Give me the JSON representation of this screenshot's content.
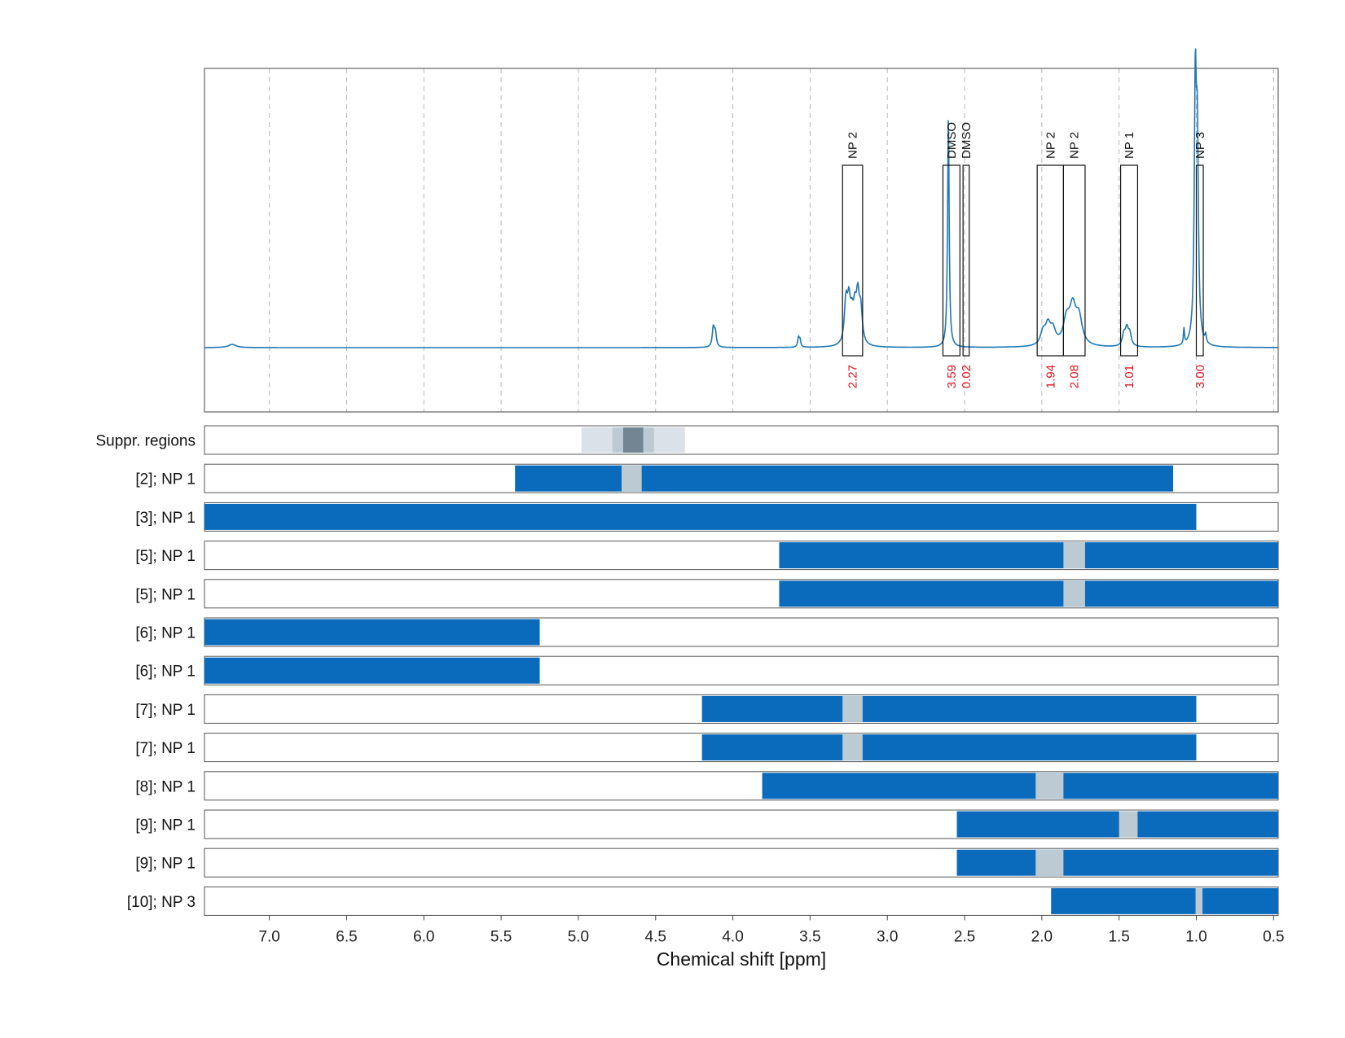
{
  "chart_data": {
    "type": "line",
    "xlabel": "Chemical shift [ppm]",
    "xlim": [
      7.42,
      0.47
    ],
    "x_ticks": [
      "7.0",
      "6.5",
      "6.0",
      "5.5",
      "5.0",
      "4.5",
      "4.0",
      "3.5",
      "3.0",
      "2.5",
      "2.0",
      "1.5",
      "1.0",
      "0.5"
    ],
    "grid": "vertical dashed",
    "colors": {
      "spectrum": "#1f77b4",
      "bar": "#0a6bbd",
      "gap": "#bccad3",
      "integral": "#e0141e",
      "box": "#111111"
    },
    "spectrum": {
      "baseline": 0.0,
      "peaks": [
        {
          "ppm": 7.24,
          "height": 0.012,
          "width": 0.03
        },
        {
          "ppm": 4.12,
          "height": 0.07,
          "width": 0.008,
          "multiplet": 2
        },
        {
          "ppm": 3.57,
          "height": 0.035,
          "width": 0.006,
          "multiplet": 2
        },
        {
          "ppm": 3.22,
          "height": 0.16,
          "width": 0.012,
          "multiplet": 6
        },
        {
          "ppm": 2.605,
          "height": 0.86,
          "width": 0.006
        },
        {
          "ppm": 1.96,
          "height": 0.07,
          "width": 0.02,
          "multiplet": 3
        },
        {
          "ppm": 1.8,
          "height": 0.13,
          "width": 0.025,
          "multiplet": 3
        },
        {
          "ppm": 1.45,
          "height": 0.06,
          "width": 0.012,
          "multiplet": 3
        },
        {
          "ppm": 1.08,
          "height": 0.06,
          "width": 0.004
        },
        {
          "ppm": 1.0,
          "height": 0.92,
          "width": 0.008,
          "multiplet": 2
        },
        {
          "ppm": 0.94,
          "height": 0.03,
          "width": 0.005
        }
      ]
    },
    "regions": [
      {
        "label": "NP 2",
        "start": 3.29,
        "end": 3.16,
        "integral": "2.27"
      },
      {
        "label": "DMSO",
        "start": 2.64,
        "end": 2.53,
        "integral": "3.59"
      },
      {
        "label": "DMSO",
        "start": 2.51,
        "end": 2.47,
        "integral": "0.02"
      },
      {
        "label": "NP 2",
        "start": 2.03,
        "end": 1.86,
        "integral": "1.94"
      },
      {
        "label": "NP 2",
        "start": 1.86,
        "end": 1.72,
        "integral": "2.08"
      },
      {
        "label": "NP 1",
        "start": 1.49,
        "end": 1.38,
        "integral": "1.01"
      },
      {
        "label": "NP 3",
        "start": 1.0,
        "end": 0.955,
        "integral": "3.00"
      }
    ],
    "suppression_rows": {
      "label": "Suppr. regions",
      "bands": [
        {
          "start": 4.98,
          "end": 4.31,
          "shade": "#dbe1e8"
        },
        {
          "start": 4.78,
          "end": 4.51,
          "shade": "#bccad3"
        },
        {
          "start": 4.71,
          "end": 4.58,
          "shade": "#738593"
        }
      ]
    },
    "rows": [
      {
        "label": "[2]; NP 1",
        "start": 5.41,
        "end": 1.15,
        "gaps": [
          [
            4.72,
            4.59
          ]
        ]
      },
      {
        "label": "[3]; NP 1",
        "start": 7.42,
        "end": 1.0,
        "gaps": []
      },
      {
        "label": "[5]; NP 1",
        "start": 3.7,
        "end": 0.47,
        "gaps": [
          [
            1.86,
            1.72
          ]
        ]
      },
      {
        "label": "[5]; NP 1",
        "start": 3.7,
        "end": 0.47,
        "gaps": [
          [
            1.86,
            1.72
          ]
        ]
      },
      {
        "label": "[6]; NP 1",
        "start": 7.42,
        "end": 5.25,
        "gaps": []
      },
      {
        "label": "[6]; NP 1",
        "start": 7.42,
        "end": 5.25,
        "gaps": []
      },
      {
        "label": "[7]; NP 1",
        "start": 4.2,
        "end": 1.0,
        "gaps": [
          [
            3.29,
            3.16
          ]
        ]
      },
      {
        "label": "[7]; NP 1",
        "start": 4.2,
        "end": 1.0,
        "gaps": [
          [
            3.29,
            3.16
          ]
        ]
      },
      {
        "label": "[8]; NP 1",
        "start": 3.81,
        "end": 0.47,
        "gaps": [
          [
            2.04,
            1.86
          ]
        ]
      },
      {
        "label": "[9]; NP 1",
        "start": 2.55,
        "end": 0.47,
        "gaps": [
          [
            1.5,
            1.38
          ]
        ]
      },
      {
        "label": "[9]; NP 1",
        "start": 2.55,
        "end": 0.47,
        "gaps": [
          [
            2.04,
            1.86
          ]
        ]
      },
      {
        "label": "[10]; NP 3",
        "start": 1.94,
        "end": 0.47,
        "gaps": [
          [
            1.005,
            0.96
          ]
        ]
      }
    ]
  }
}
